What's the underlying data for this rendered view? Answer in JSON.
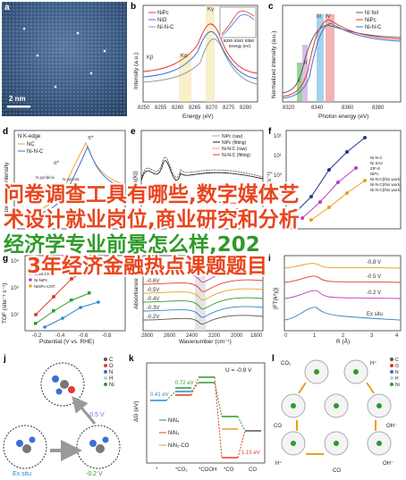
{
  "panels": {
    "a": {
      "label": "a",
      "scale_bar": "2 nm"
    },
    "b": {
      "label": "b",
      "legend": [
        "NiPc",
        "NiO",
        "Ni-N-C"
      ],
      "x_label": "Energy (eV)",
      "y_label": "Intensity (a.u.)",
      "x_ticks": [
        "8250",
        "8255",
        "8260",
        "8265",
        "8270",
        "8275",
        "8280"
      ],
      "peaks": [
        "Kβ",
        "Kα",
        "Kγ"
      ],
      "inset": {
        "x_label": "Energy (eV)",
        "x_ticks": [
          "8330",
          "8340",
          "8350"
        ]
      }
    },
    "c": {
      "label": "c",
      "legend": [
        "Ni foil",
        "NiPc",
        "Ni-N-C"
      ],
      "x_label": "Photon energy (eV)",
      "y_label": "Normalized intensity (a.u.)",
      "x_ticks": [
        "8320",
        "8340",
        "8360",
        "8380"
      ],
      "regions": [
        "I",
        "II",
        "III",
        "IV"
      ]
    },
    "d": {
      "label": "d",
      "title": "N K-edge",
      "legend": [
        "NC",
        "Ni-N-C"
      ],
      "y_label": "Normalized intensity",
      "annotations": [
        "π*",
        "σ*",
        "N pyridinic",
        "N pyrrolic",
        "N graphitic"
      ]
    },
    "e": {
      "label": "e",
      "legend": [
        "NiPc (raw)",
        "NiPc (fitting)",
        "Ni-N-C (raw)",
        "Ni-N-C (fitting)"
      ],
      "y_label": "FT(k³χ(k))"
    },
    "f": {
      "label": "f",
      "y_label": "TOF (s⁻¹)",
      "y_ticks": [
        "10²",
        "10¹",
        "10⁰",
        "10⁻¹",
        "10⁻²"
      ],
      "legend": [
        "Ni-N-C",
        "Ni-N-C(this work)",
        "Ni SAs",
        "Ni-N-C(this work)",
        "ZIF-8",
        "Ni-N-C(this work)",
        "NiPc"
      ]
    },
    "g": {
      "label": "g",
      "legend": [
        "Ni-N-C",
        "CoPc",
        "CoNi-CNT",
        "Ni-NiPc",
        "NiNPc-CNT"
      ],
      "y_label": "TOF (site⁻¹ s⁻¹)",
      "x_label": "Potential (V vs. RHE)",
      "x_ticks": [
        "-0.2",
        "-0.4",
        "-0.6",
        "-0.8"
      ],
      "y_ticks": [
        "10⁴",
        "10³",
        "10²"
      ]
    },
    "h": {
      "label": "h",
      "x_label": "Wavenumber (cm⁻¹)",
      "y_label": "Absorbance",
      "x_ticks": [
        "2800",
        "2600",
        "2400",
        "2200",
        "2000",
        "1800"
      ],
      "potentials": [
        "-0.8V",
        "-0.6V",
        "-0.5V",
        "-0.4V",
        "-0.3V",
        "-0.2V"
      ]
    },
    "i": {
      "label": "i",
      "x_label": "R (Å)",
      "y_label": "|FT(k³χ)|",
      "x_ticks": [
        "0",
        "1",
        "2",
        "3",
        "4"
      ],
      "traces": [
        "-0.8 V",
        "-0.5 V",
        "-0.2 V",
        "Ex situ"
      ]
    },
    "j": {
      "label": "j",
      "legend": [
        "C",
        "O",
        "N",
        "H",
        "Ni"
      ],
      "states": [
        "-0.5 V",
        "Ex situ",
        "-0.2 V"
      ]
    },
    "k": {
      "label": "k",
      "y_label": "ΔG (eV)",
      "u_label": "U = -0.9 V",
      "x_ticks": [
        "*",
        "*CO₂",
        "*COOH",
        "*CO",
        "CO"
      ],
      "values": [
        "0.41 eV",
        "0.72 eV",
        "1.15 eV"
      ],
      "legend": [
        "NiN₄",
        "NiN₃",
        "NiN₂-CO"
      ]
    },
    "l": {
      "label": "l",
      "species": [
        "CO₂",
        "H⁺",
        "CO",
        "OH⁻",
        "H⁺",
        "CO",
        "OH⁻"
      ],
      "legend": [
        "C",
        "O",
        "N",
        "H",
        "Ni"
      ]
    }
  },
  "overlay": {
    "line1": "问卷调查工具有哪些,数字媒体艺",
    "line2": "术设计就业岗位,商业研究和分析",
    "line3": "经济学专业前景怎么样,202",
    "line4": "3年经济金融热点课题题目"
  }
}
